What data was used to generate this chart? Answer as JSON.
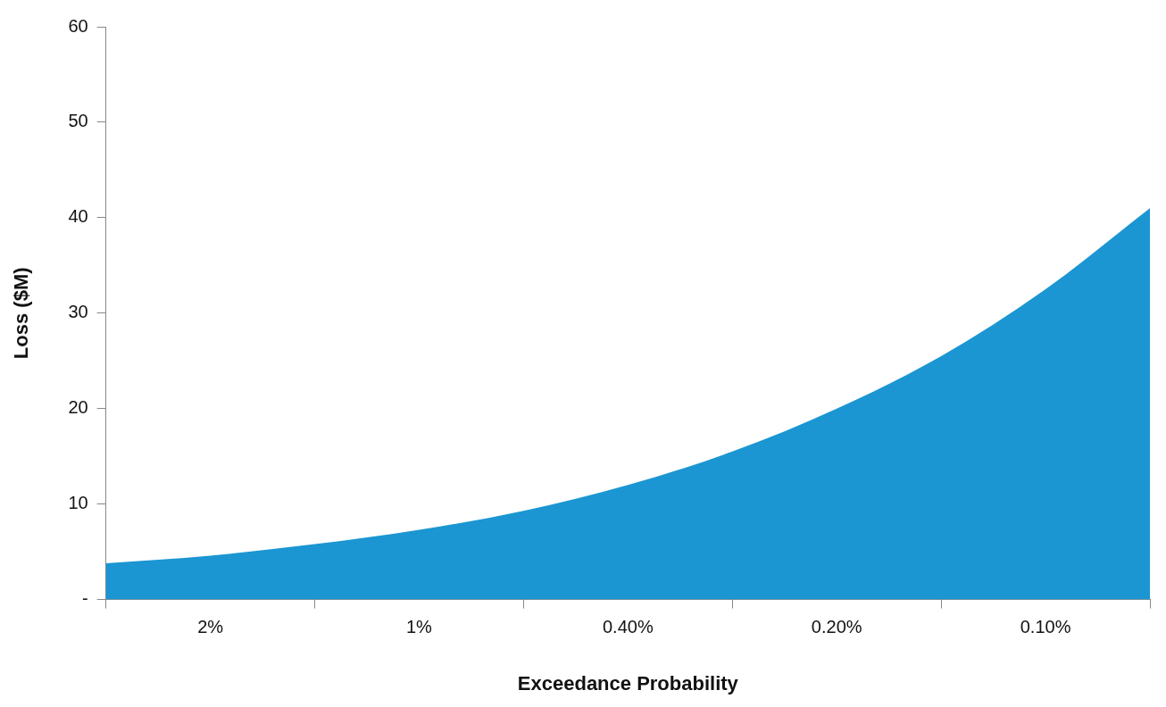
{
  "chart_data": {
    "type": "area",
    "xlabel": "Exceedance Probability",
    "ylabel": "Loss ($M)",
    "categories": [
      null,
      "2%",
      null,
      "1%",
      null,
      "0.40%",
      null,
      "0.20%",
      null,
      "0.10%",
      null
    ],
    "series": [
      {
        "color": "#1b96d2",
        "values": [
          3.8,
          4.6,
          5.8,
          7.3,
          9.3,
          12,
          15.5,
          20,
          25.5,
          32.5,
          41
        ]
      }
    ],
    "ylim": [
      0,
      60
    ],
    "yticks": [
      {
        "value": 0,
        "label": "-"
      },
      10,
      20,
      30,
      40,
      50,
      60
    ],
    "grid": false,
    "legend": false
  }
}
